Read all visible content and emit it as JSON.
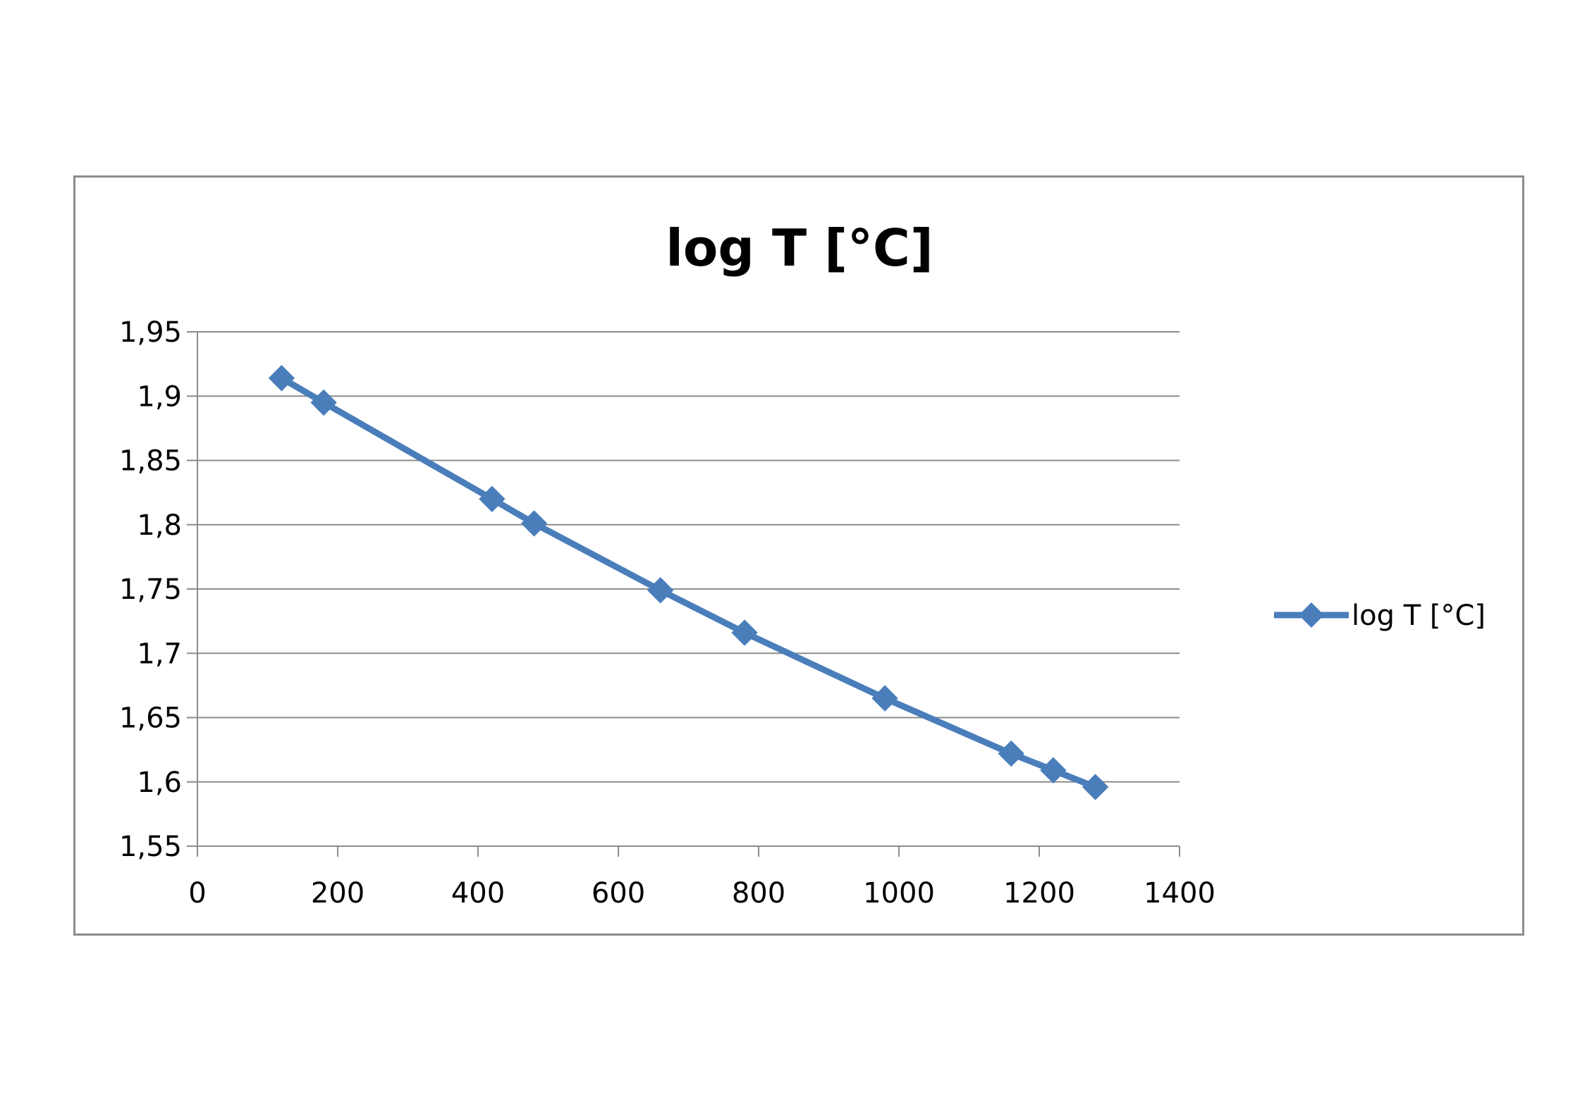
{
  "chart_data": {
    "type": "line",
    "title": "log T [°C]",
    "xlabel": "",
    "ylabel": "",
    "xlim": [
      0,
      1400
    ],
    "ylim": [
      1.55,
      1.95
    ],
    "x_ticks": [
      0,
      200,
      400,
      600,
      800,
      1000,
      1200,
      1400
    ],
    "x_tick_labels": [
      "0",
      "200",
      "400",
      "600",
      "800",
      "1000",
      "1200",
      "1400"
    ],
    "y_ticks": [
      1.55,
      1.6,
      1.65,
      1.7,
      1.75,
      1.8,
      1.85,
      1.9,
      1.95
    ],
    "y_tick_labels": [
      "1,55",
      "1,6",
      "1,65",
      "1,7",
      "1,75",
      "1,8",
      "1,85",
      "1,9",
      "1,95"
    ],
    "grid": "horizontal",
    "legend": "right",
    "series": [
      {
        "name": "log T [°C]",
        "color": "#4a7ebb",
        "marker": "diamond",
        "x": [
          120,
          180,
          420,
          480,
          660,
          780,
          980,
          1160,
          1220,
          1280
        ],
        "y": [
          1.914,
          1.895,
          1.82,
          1.801,
          1.749,
          1.716,
          1.665,
          1.622,
          1.609,
          1.596
        ]
      }
    ]
  }
}
